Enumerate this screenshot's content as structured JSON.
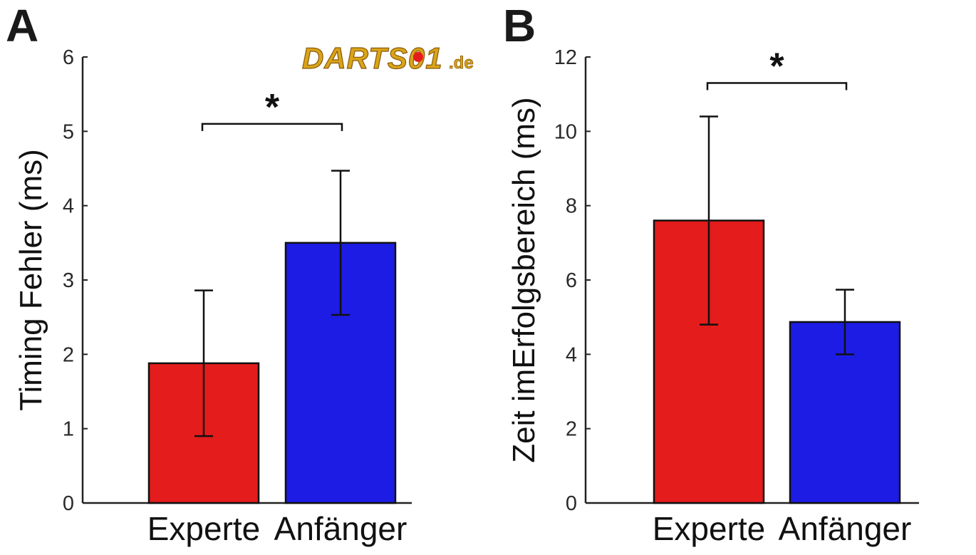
{
  "chart_data": [
    {
      "type": "bar",
      "panel_label": "A",
      "categories": [
        "Experte",
        "Anfänger"
      ],
      "values": [
        1.88,
        3.5
      ],
      "errors": [
        0.98,
        0.97
      ],
      "colors": [
        "#e41c1c",
        "#1c1ce4"
      ],
      "ylabel": "Timing Fehler (ms)",
      "xlabel": "",
      "ylim": [
        0,
        6
      ],
      "yticks": [
        0,
        1,
        2,
        3,
        4,
        5,
        6
      ],
      "significance": {
        "label": "*",
        "between": [
          0,
          1
        ],
        "y": 5.1
      }
    },
    {
      "type": "bar",
      "panel_label": "B",
      "categories": [
        "Experte",
        "Anfänger"
      ],
      "values": [
        7.6,
        4.87
      ],
      "errors": [
        2.8,
        0.87
      ],
      "colors": [
        "#e41c1c",
        "#1c1ce4"
      ],
      "ylabel": "Zeit imErfolgsbereich (ms)",
      "xlabel": "",
      "ylim": [
        0,
        12
      ],
      "yticks": [
        0,
        2,
        4,
        6,
        8,
        10,
        12
      ],
      "significance": {
        "label": "*",
        "between": [
          0,
          1
        ],
        "y": 11.3
      }
    }
  ],
  "watermark": {
    "text": "DARTS01",
    "suffix": ".de"
  }
}
